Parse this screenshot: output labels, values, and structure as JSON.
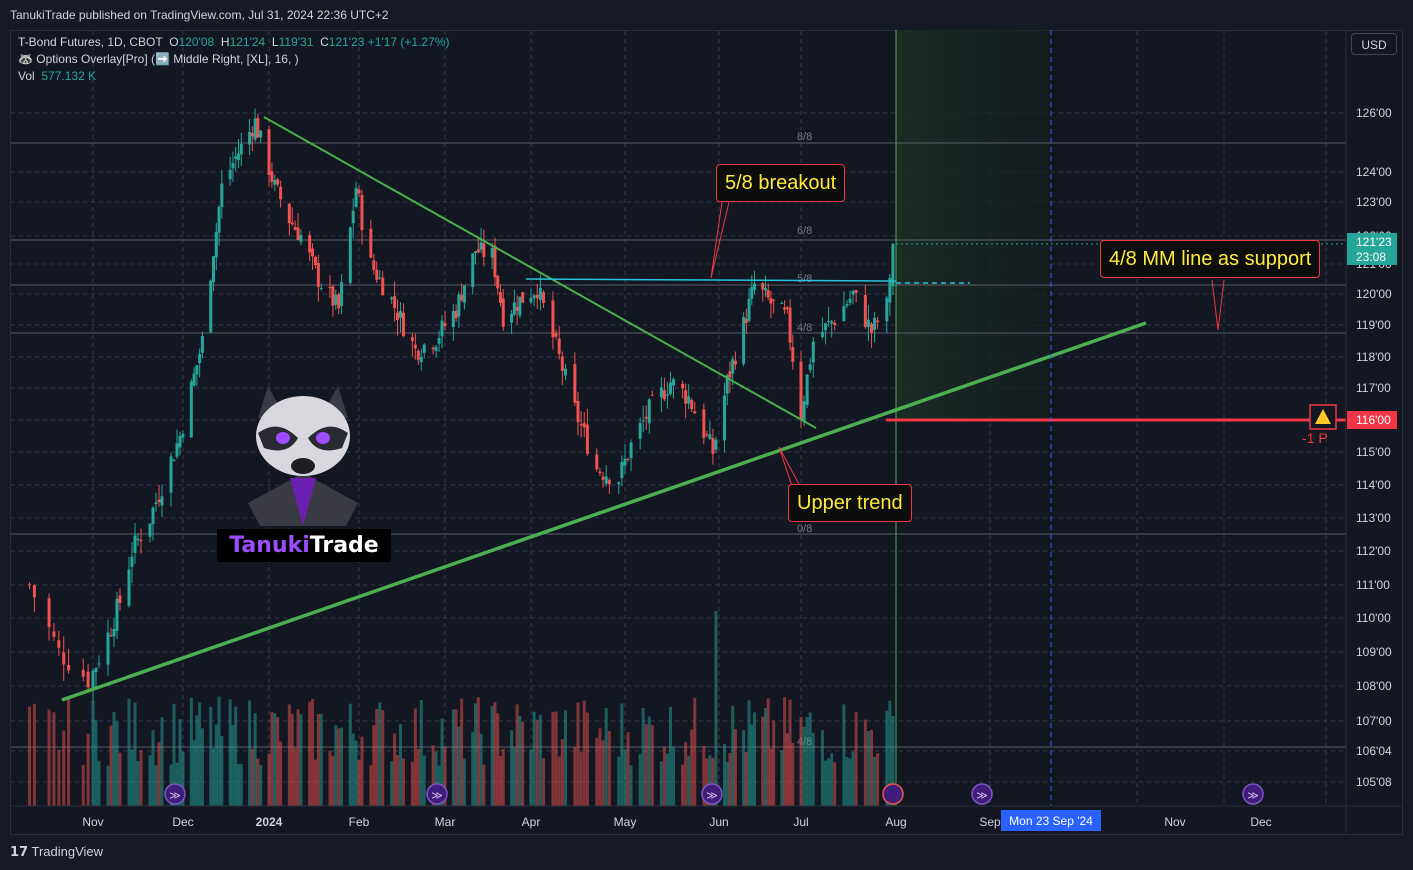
{
  "header": {
    "published": "TanukiTrade published on TradingView.com, Jul 31, 2024 22:36 UTC+2"
  },
  "legend": {
    "line1_symbol": "T-Bond Futures, 1D, CBOT",
    "o_label": "O",
    "o_value": "120'08",
    "h_label": "H",
    "h_value": "121'24",
    "l_label": "L",
    "l_value": "119'31",
    "c_label": "C",
    "c_value": "121'23",
    "change": "+1'17 (+1.27%)",
    "line2": "🦝 Options Overlay[Pro] (➡️ Middle Right, [XL], 16, )",
    "vol_label": "Vol",
    "vol_value": "577.132 K"
  },
  "currency_button": "USD",
  "price_labels": {
    "current_price": "121'23",
    "countdown": "23:08",
    "level_price": "116'00",
    "level_marker": "-1 P"
  },
  "annotations": {
    "breakout": "5/8 breakout",
    "support": "4/8 MM line as support",
    "trend": "Upper trend"
  },
  "crosshair_label": "Mon 23 Sep '24",
  "logo": {
    "part1": "Tanuki",
    "part2": "Trade"
  },
  "footer": {
    "brand": "TradingView"
  },
  "colors": {
    "up": "#26a69a",
    "down": "#ef5350",
    "trend": "#4caf50",
    "level": "#f23645",
    "breakout_line": "#26c6da",
    "crosshair": "#2962ff"
  },
  "chart_data": {
    "type": "candlestick",
    "symbol": "T-Bond Futures, 1D, CBOT",
    "y_range": [
      "104'24",
      "128'00"
    ],
    "y_ticks": [
      "126'00",
      "124'00",
      "123'00",
      "122'00",
      "121'00",
      "120'00",
      "119'00",
      "118'00",
      "117'00",
      "116'00",
      "115'00",
      "114'00",
      "113'00",
      "112'00",
      "111'00",
      "110'00",
      "109'00",
      "108'00",
      "107'00",
      "106'04",
      "105'08"
    ],
    "x_ticks": [
      "Nov",
      "Dec",
      "2024",
      "Feb",
      "Mar",
      "Apr",
      "May",
      "Jun",
      "Jul",
      "Aug",
      "Sep",
      "Nov",
      "Dec"
    ],
    "murrey_labels": [
      "8/8",
      "6/8",
      "5/8",
      "4/8",
      "0/8",
      "4/8"
    ],
    "close_path": [
      [
        "2023-10-19",
        111.0
      ],
      [
        "2023-10-25",
        109.0
      ],
      [
        "2023-10-31",
        108.2
      ],
      [
        "2023-11-06",
        109.5
      ],
      [
        "2023-11-10",
        110.5
      ],
      [
        "2023-11-14",
        112.0
      ],
      [
        "2023-11-20",
        113.0
      ],
      [
        "2023-11-24",
        114.0
      ],
      [
        "2023-11-30",
        115.5
      ],
      [
        "2023-12-04",
        117.0
      ],
      [
        "2023-12-08",
        118.5
      ],
      [
        "2023-12-12",
        121.5
      ],
      [
        "2023-12-15",
        123.5
      ],
      [
        "2023-12-20",
        124.5
      ],
      [
        "2023-12-27",
        125.7
      ],
      [
        "2024-01-03",
        123.5
      ],
      [
        "2024-01-08",
        122.5
      ],
      [
        "2024-01-12",
        122.0
      ],
      [
        "2024-01-18",
        120.5
      ],
      [
        "2024-01-25",
        119.5
      ],
      [
        "2024-01-31",
        123.5
      ],
      [
        "2024-02-05",
        121.0
      ],
      [
        "2024-02-12",
        119.8
      ],
      [
        "2024-02-20",
        118.2
      ],
      [
        "2024-02-27",
        118.6
      ],
      [
        "2024-03-05",
        119.5
      ],
      [
        "2024-03-12",
        121.5
      ],
      [
        "2024-03-18",
        121.3
      ],
      [
        "2024-03-22",
        119.3
      ],
      [
        "2024-03-28",
        119.8
      ],
      [
        "2024-04-03",
        120.2
      ],
      [
        "2024-04-09",
        118.3
      ],
      [
        "2024-04-15",
        116.3
      ],
      [
        "2024-04-22",
        114.5
      ],
      [
        "2024-04-29",
        114.2
      ],
      [
        "2024-05-03",
        115.2
      ],
      [
        "2024-05-09",
        116.3
      ],
      [
        "2024-05-16",
        117.2
      ],
      [
        "2024-05-22",
        116.7
      ],
      [
        "2024-05-30",
        115.0
      ],
      [
        "2024-06-04",
        117.2
      ],
      [
        "2024-06-10",
        119.0
      ],
      [
        "2024-06-14",
        120.3
      ],
      [
        "2024-06-20",
        119.7
      ],
      [
        "2024-06-26",
        119.2
      ],
      [
        "2024-07-01",
        116.2
      ],
      [
        "2024-07-05",
        118.5
      ],
      [
        "2024-07-12",
        119.2
      ],
      [
        "2024-07-18",
        120.0
      ],
      [
        "2024-07-24",
        118.8
      ],
      [
        "2024-07-29",
        119.6
      ],
      [
        "2024-07-31",
        121.7
      ]
    ],
    "volume_peak": "2024-05-31"
  }
}
